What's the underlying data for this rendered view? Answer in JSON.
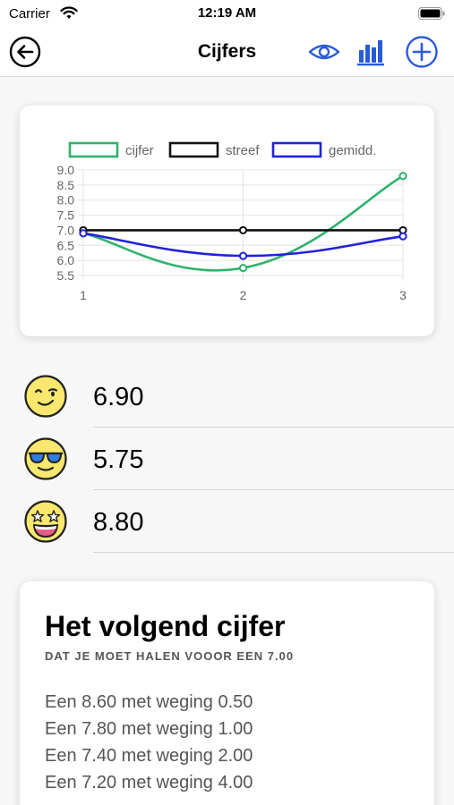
{
  "status_bar": {
    "carrier": "Carrier",
    "time": "12:19 AM"
  },
  "nav": {
    "title": "Cijfers",
    "accent_color": "#2a5bd7",
    "icons": [
      "back-arrow-icon",
      "eye-icon",
      "bar-chart-icon",
      "plus-circle-icon"
    ]
  },
  "chart_data": {
    "type": "line",
    "x": [
      1,
      2,
      3
    ],
    "ylim": [
      5.5,
      9.0
    ],
    "y_ticks": [
      "9.0",
      "8.5",
      "8.0",
      "7.5",
      "7.0",
      "6.5",
      "6.0",
      "5.5"
    ],
    "x_ticks": [
      "1",
      "2",
      "3"
    ],
    "grid": true,
    "legend_position": "top",
    "series": [
      {
        "name": "cijfer",
        "color": "#2fb36d",
        "values": [
          6.9,
          5.75,
          8.8
        ]
      },
      {
        "name": "streef",
        "color": "#111111",
        "values": [
          7.0,
          7.0,
          7.0
        ]
      },
      {
        "name": "gemidd.",
        "color": "#2222dd",
        "values": [
          6.9,
          6.15,
          6.8
        ]
      }
    ]
  },
  "grades": [
    {
      "value": "6.90",
      "emoji": "winking-face-icon"
    },
    {
      "value": "5.75",
      "emoji": "sunglasses-face-icon"
    },
    {
      "value": "8.80",
      "emoji": "star-struck-face-icon"
    }
  ],
  "next_grade": {
    "title": "Het volgend cijfer",
    "subtitle": "DAT JE MOET HALEN VOOOR EEN 7.00",
    "items": [
      "Een 8.60 met weging 0.50",
      "Een 7.80 met weging 1.00",
      "Een 7.40 met weging 2.00",
      "Een 7.20 met weging 4.00"
    ]
  }
}
